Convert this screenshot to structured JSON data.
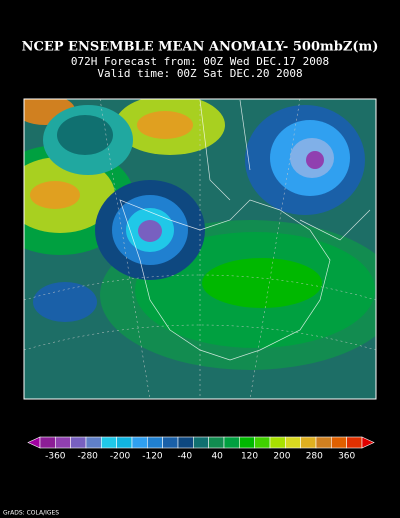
{
  "header": {
    "title": "NCEP ENSEMBLE MEAN ANOMALY- 500mbZ(m)",
    "line2": "072H Forecast from: 00Z Wed DEC.17 2008",
    "line3": "Valid time: 00Z Sat DEC.20 2008"
  },
  "colorbar": {
    "labels": [
      -360,
      -280,
      -200,
      -120,
      -40,
      40,
      120,
      200,
      280,
      360
    ],
    "colors": [
      "#a000a0",
      "#8c1e96",
      "#9040b0",
      "#7860c0",
      "#6080c8",
      "#20c8e8",
      "#10b4e0",
      "#30a0f0",
      "#2080d0",
      "#1a60a8",
      "#0e4880",
      "#107070",
      "#128c50",
      "#00a040",
      "#00b800",
      "#40d000",
      "#a8e000",
      "#d8d820",
      "#e0b020",
      "#d08020",
      "#e06000",
      "#e03000",
      "#e00000"
    ]
  },
  "footer": "GrADS: COLA/IGES"
}
